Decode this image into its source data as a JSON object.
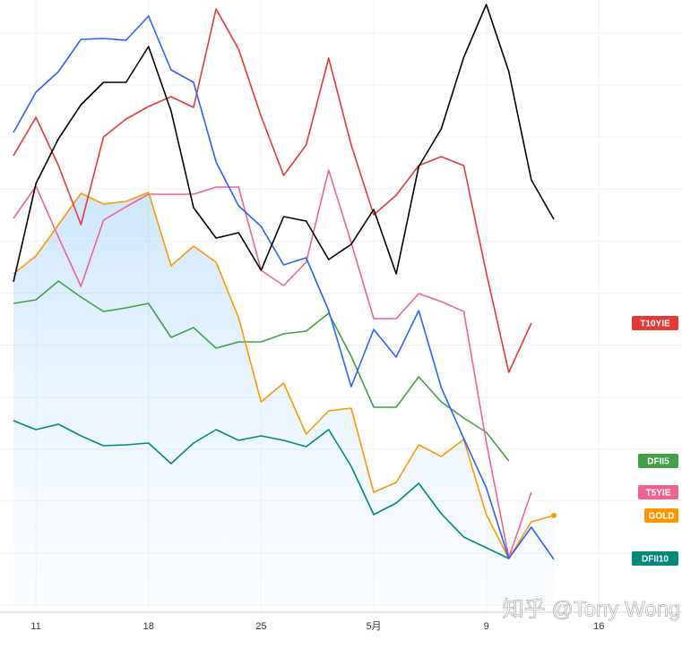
{
  "chart_data": {
    "type": "line",
    "categories": [
      null,
      "11",
      null,
      null,
      null,
      null,
      "18",
      null,
      null,
      null,
      null,
      "25",
      null,
      null,
      null,
      null,
      "5月",
      null,
      null,
      null,
      null,
      "9",
      null,
      null,
      null,
      null,
      "16"
    ],
    "ylim": [
      0,
      676
    ],
    "series": [
      {
        "name": "DFII5",
        "color": "#43a047",
        "values": [
          337,
          341,
          362,
          344,
          328,
          332,
          337,
          299,
          310,
          287,
          294,
          294,
          303,
          306,
          326,
          278,
          221,
          221,
          255,
          227,
          209,
          193,
          161,
          null,
          null,
          null,
          null
        ]
      },
      {
        "name": "DFII10",
        "color": "#00897b",
        "values": [
          206,
          196,
          202,
          189,
          178,
          179,
          181,
          158,
          181,
          196,
          184,
          189,
          184,
          177,
          196,
          155,
          101,
          114,
          136,
          102,
          76,
          64,
          52,
          null,
          null,
          null,
          null
        ]
      },
      {
        "name": "T5YIE",
        "color": "#f06292",
        "values": [
          432,
          468,
          411,
          356,
          430,
          445,
          459,
          459,
          459,
          467,
          467,
          374,
          357,
          383,
          486,
          405,
          320,
          320,
          348,
          339,
          328,
          182,
          53,
          126,
          null,
          null,
          null
        ]
      },
      {
        "name": "GOLD",
        "color": "#ff9800",
        "values": [
          370,
          390,
          425,
          460,
          448,
          451,
          461,
          379,
          401,
          383,
          321,
          227,
          248,
          191,
          217,
          220,
          126,
          137,
          179,
          166,
          185,
          101,
          52,
          93,
          100,
          null,
          null
        ]
      },
      {
        "name": "T10YIE",
        "color": "#e53935",
        "values": [
          502,
          545,
          491,
          425,
          523,
          543,
          557,
          568,
          556,
          666,
          621,
          546,
          480,
          514,
          611,
          514,
          436,
          458,
          491,
          501,
          491,
          371,
          260,
          315,
          null,
          null,
          null
        ]
      },
      {
        "name": null,
        "color": "#2962ff",
        "values": [
          528,
          573,
          596,
          632,
          633,
          631,
          658,
          598,
          584,
          495,
          446,
          423,
          380,
          388,
          329,
          244,
          308,
          277,
          329,
          243,
          186,
          131,
          52,
          87,
          51,
          null,
          null
        ]
      },
      {
        "name": null,
        "color": "#000000",
        "values": [
          361,
          471,
          521,
          559,
          584,
          584,
          624,
          552,
          444,
          410,
          416,
          374,
          434,
          429,
          386,
          403,
          442,
          370,
          490,
          532,
          612,
          671,
          596,
          475,
          431,
          null,
          null
        ]
      }
    ],
    "area_series": 3,
    "watermark": "知乎 @Tony Wong"
  }
}
